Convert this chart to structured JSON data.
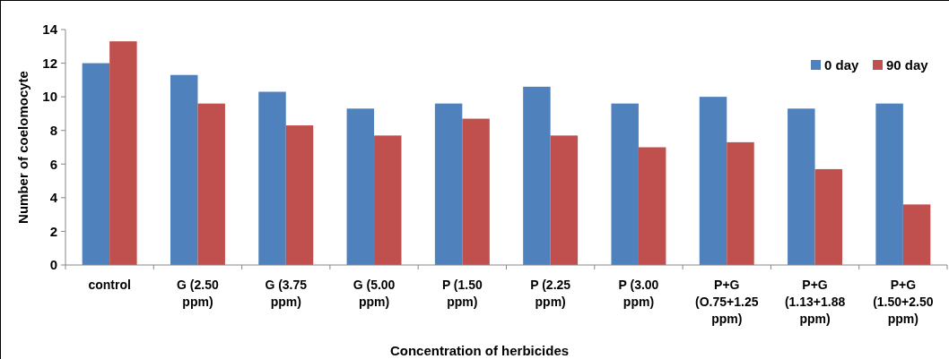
{
  "chart_data": {
    "type": "bar",
    "xlabel": "Concentration  of  herbicides",
    "ylabel": "Number of coelomocyte",
    "categories": [
      "control",
      "G (2.50 ppm)",
      "G (3.75 ppm)",
      "G (5.00 ppm)",
      "P (1.50 ppm)",
      "P (2.25 ppm)",
      "P (3.00 ppm)",
      "P+G (O.75+1.25 ppm)",
      "P+G (1.13+1.88 ppm)",
      "P+G (1.50+2.50 ppm)"
    ],
    "series": [
      {
        "name": "0 day",
        "color": "#4f81bd",
        "values": [
          12.0,
          11.3,
          10.3,
          9.3,
          9.6,
          10.6,
          9.6,
          10.0,
          9.3,
          9.6
        ]
      },
      {
        "name": "90 day",
        "color": "#c0504d",
        "values": [
          13.3,
          9.6,
          8.3,
          7.7,
          8.7,
          7.7,
          7.0,
          7.3,
          5.7,
          3.6
        ]
      }
    ],
    "ylim": [
      0,
      14
    ],
    "yticks": [
      0,
      2,
      4,
      6,
      8,
      10,
      12,
      14
    ],
    "grid": false,
    "legend": "top right"
  }
}
